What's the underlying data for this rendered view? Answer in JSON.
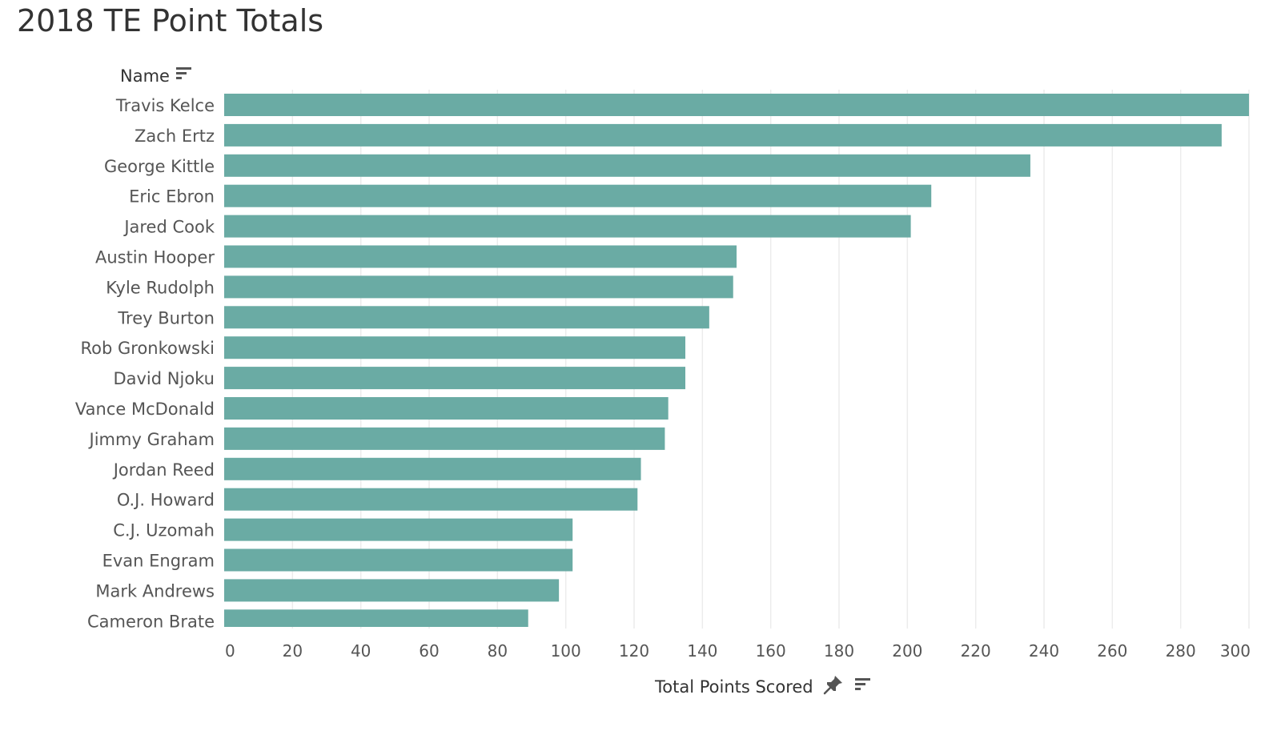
{
  "colors": {
    "bar": "#6aaba4",
    "grid": "#ececec",
    "text": "#555555",
    "heading": "#333333"
  },
  "icons": {
    "y_sort": "sort-descending-icon",
    "x_pin": "pin-icon",
    "x_sort": "sort-descending-icon"
  },
  "chart_data": {
    "type": "bar",
    "orientation": "horizontal",
    "title": "2018 TE Point Totals",
    "ylabel": "Name",
    "xlabel": "Total Points Scored",
    "xlim": [
      0,
      300
    ],
    "xticks": [
      0,
      20,
      40,
      60,
      80,
      100,
      120,
      140,
      160,
      180,
      200,
      220,
      240,
      260,
      280,
      300
    ],
    "grid": true,
    "categories": [
      "Travis Kelce",
      "Zach Ertz",
      "George Kittle",
      "Eric Ebron",
      "Jared Cook",
      "Austin Hooper",
      "Kyle Rudolph",
      "Trey Burton",
      "Rob Gronkowski",
      "David Njoku",
      "Vance McDonald",
      "Jimmy Graham",
      "Jordan Reed",
      "O.J. Howard",
      "C.J. Uzomah",
      "Evan Engram",
      "Mark Andrews",
      "Cameron Brate"
    ],
    "values": [
      300,
      292,
      236,
      207,
      201,
      150,
      149,
      142,
      135,
      135,
      130,
      129,
      122,
      121,
      102,
      102,
      98,
      89
    ]
  }
}
